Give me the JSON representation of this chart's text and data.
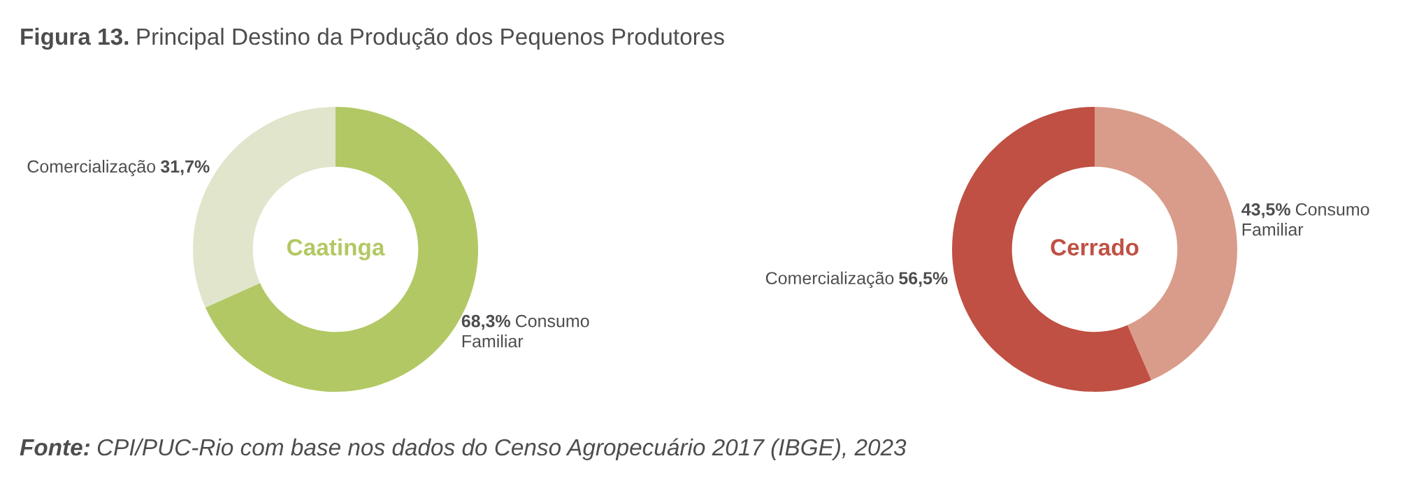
{
  "chart_data": [
    {
      "type": "donut",
      "title": "Caatinga",
      "annotations": [
        "Figura 13.",
        "Principal Destino da Produção dos Pequenos Produtores",
        "Fonte:",
        "CPI/PUC-Rio com base nos dados do Censo Agropecuário 2017 (IBGE), 2023"
      ],
      "categories": [
        "Consumo Familiar",
        "Comercialização"
      ],
      "values": [
        68.3,
        31.7
      ],
      "colors": [
        "#b2c864",
        "#e0e5cb"
      ],
      "value_labels": [
        "68,3%",
        "31,7%"
      ]
    },
    {
      "type": "donut",
      "title": "Cerrado",
      "categories": [
        "Consumo Familiar",
        "Comercialização"
      ],
      "values": [
        43.5,
        56.5
      ],
      "colors": [
        "#d99c8a",
        "#bf5043"
      ],
      "value_labels": [
        "43,5%",
        "56,5%"
      ]
    }
  ]
}
